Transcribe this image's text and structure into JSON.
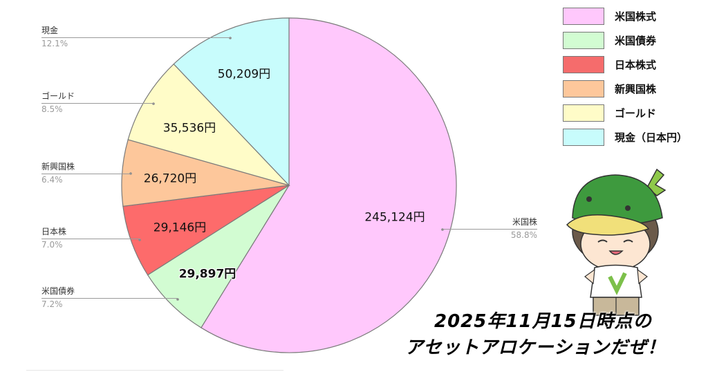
{
  "chart_data": {
    "type": "pie",
    "title": "",
    "start_angle_deg": 0,
    "direction": "clockwise",
    "center": [
      418,
      268
    ],
    "radius": 242,
    "slices": [
      {
        "name": "米国株",
        "legend": "米国株式",
        "value": 245124,
        "value_label": "245,124円",
        "percent": 58.8,
        "percent_label": "58.8%",
        "color": "#ffc8fc"
      },
      {
        "name": "米国債券",
        "legend": "米国債券",
        "value": 29897,
        "value_label": "29,897円",
        "percent": 7.2,
        "percent_label": "7.2%",
        "color": "#d2fcd2"
      },
      {
        "name": "日本株",
        "legend": "日本株式",
        "value": 29146,
        "value_label": "29,146円",
        "percent": 7.0,
        "percent_label": "7.0%",
        "color": "#fd6b6b"
      },
      {
        "name": "新興国株",
        "legend": "新興国株",
        "value": 26720,
        "value_label": "26,720円",
        "percent": 6.4,
        "percent_label": "6.4%",
        "color": "#fdc79b"
      },
      {
        "name": "ゴールド",
        "legend": "ゴールド",
        "value": 35536,
        "value_label": "35,536円",
        "percent": 8.5,
        "percent_label": "8.5%",
        "color": "#fffcc8"
      },
      {
        "name": "現金",
        "legend": "現金（日本円）",
        "value": 50209,
        "value_label": "50,209円",
        "percent": 12.1,
        "percent_label": "12.1%",
        "color": "#c8fcfc"
      }
    ],
    "legend_position": "top-right",
    "grid": false
  },
  "callouts": [
    {
      "name": "現金",
      "pct": "12.1%"
    },
    {
      "name": "ゴールド",
      "pct": "8.5%"
    },
    {
      "name": "新興国株",
      "pct": "6.4%"
    },
    {
      "name": "日本株",
      "pct": "7.0%"
    },
    {
      "name": "米国債券",
      "pct": "7.2%"
    },
    {
      "name": "米国株",
      "pct": "58.8%"
    }
  ],
  "legend": [
    {
      "label": "米国株式",
      "color": "#ffc8fc"
    },
    {
      "label": "米国債券",
      "color": "#d2fcd2"
    },
    {
      "label": "日本株式",
      "color": "#f56c6c"
    },
    {
      "label": "新興国株",
      "color": "#fdc79b"
    },
    {
      "label": "ゴールド",
      "color": "#fffcc8"
    },
    {
      "label": "現金（日本円）",
      "color": "#c8fcfc"
    }
  ],
  "caption": {
    "line1": "2025年11月15日時点の",
    "line2": "アセットアロケーションだぜ！"
  }
}
